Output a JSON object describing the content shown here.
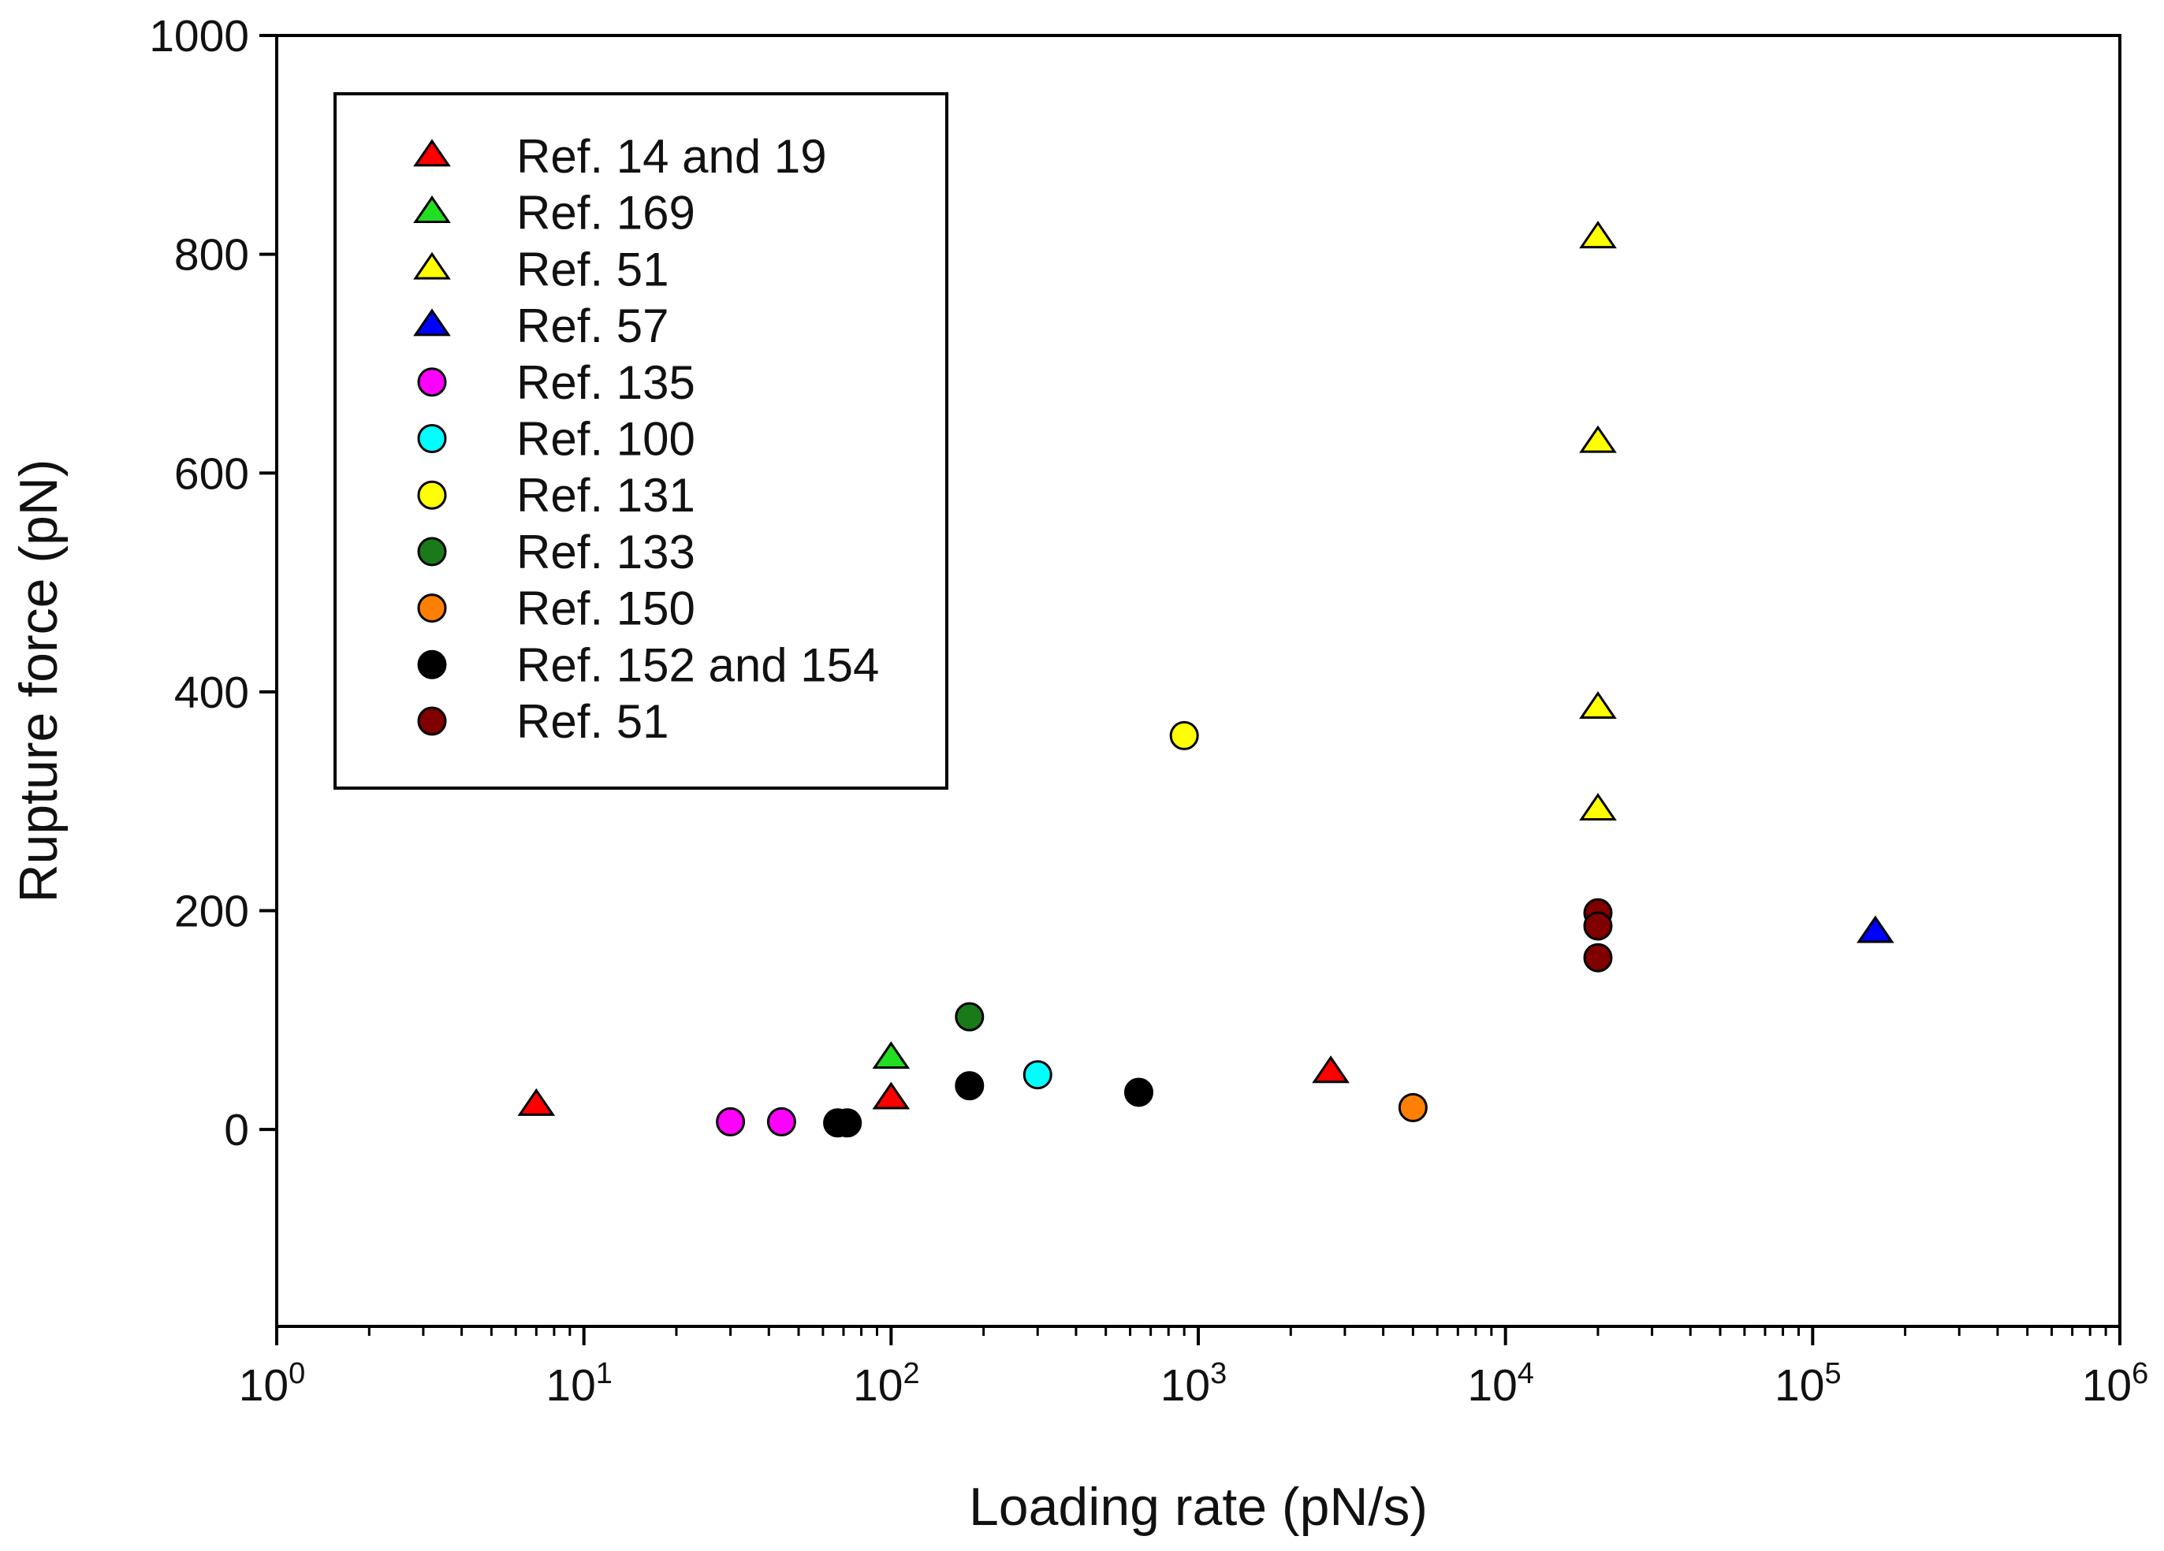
{
  "chart_data": {
    "type": "scatter",
    "xscale": "log",
    "xlabel": "Loading rate (pN/s)",
    "ylabel": "Rupture force (pN)",
    "xlim": [
      1,
      1000000
    ],
    "ylim": [
      -180,
      1000
    ],
    "grid": false,
    "legend_position": "top-left",
    "y_ticks": [
      {
        "value": 0,
        "label": "0"
      },
      {
        "value": 200,
        "label": "200"
      },
      {
        "value": 400,
        "label": "400"
      },
      {
        "value": 600,
        "label": "600"
      },
      {
        "value": 800,
        "label": "800"
      },
      {
        "value": 1000,
        "label": "1000"
      }
    ],
    "x_ticks": [
      {
        "exp": 0,
        "base": "10",
        "sup": "0"
      },
      {
        "exp": 1,
        "base": "10",
        "sup": "1"
      },
      {
        "exp": 2,
        "base": "10",
        "sup": "2"
      },
      {
        "exp": 3,
        "base": "10",
        "sup": "3"
      },
      {
        "exp": 4,
        "base": "10",
        "sup": "4"
      },
      {
        "exp": 5,
        "base": "10",
        "sup": "5"
      },
      {
        "exp": 6,
        "base": "10",
        "sup": "6"
      }
    ],
    "series": [
      {
        "name": "Ref. 14 and 19",
        "marker": "triangle",
        "color": "#ff0000",
        "points": [
          [
            7,
            22
          ],
          [
            100,
            28
          ],
          [
            2700,
            52
          ]
        ]
      },
      {
        "name": "Ref. 169",
        "marker": "triangle",
        "color": "#22dd22",
        "points": [
          [
            100,
            65
          ]
        ]
      },
      {
        "name": "Ref. 51",
        "marker": "triangle",
        "color": "#ffff00",
        "points": [
          [
            20000,
            815
          ],
          [
            20000,
            628
          ],
          [
            20000,
            385
          ],
          [
            20000,
            292
          ]
        ]
      },
      {
        "name": "Ref. 57",
        "marker": "triangle",
        "color": "#0000ff",
        "points": [
          [
            160000,
            180
          ]
        ]
      },
      {
        "name": "Ref. 135",
        "marker": "circle",
        "color": "#ff00ff",
        "points": [
          [
            30,
            7
          ],
          [
            44,
            7
          ]
        ]
      },
      {
        "name": "Ref. 100",
        "marker": "circle",
        "color": "#00ffff",
        "points": [
          [
            300,
            50
          ]
        ]
      },
      {
        "name": "Ref. 131",
        "marker": "circle",
        "color": "#ffff00",
        "points": [
          [
            900,
            360
          ]
        ]
      },
      {
        "name": "Ref. 133",
        "marker": "circle",
        "color": "#1a7a1a",
        "points": [
          [
            180,
            103
          ]
        ]
      },
      {
        "name": "Ref. 150",
        "marker": "circle",
        "color": "#ff8000",
        "points": [
          [
            5000,
            20
          ]
        ]
      },
      {
        "name": "Ref. 152 and 154",
        "marker": "circle",
        "color": "#000000",
        "points": [
          [
            67,
            6
          ],
          [
            72,
            6
          ],
          [
            180,
            40
          ],
          [
            640,
            34
          ]
        ]
      },
      {
        "name": "Ref. 51",
        "marker": "circle",
        "color": "#800000",
        "points": [
          [
            20000,
            198
          ],
          [
            20000,
            186
          ],
          [
            20000,
            157
          ]
        ]
      }
    ]
  }
}
